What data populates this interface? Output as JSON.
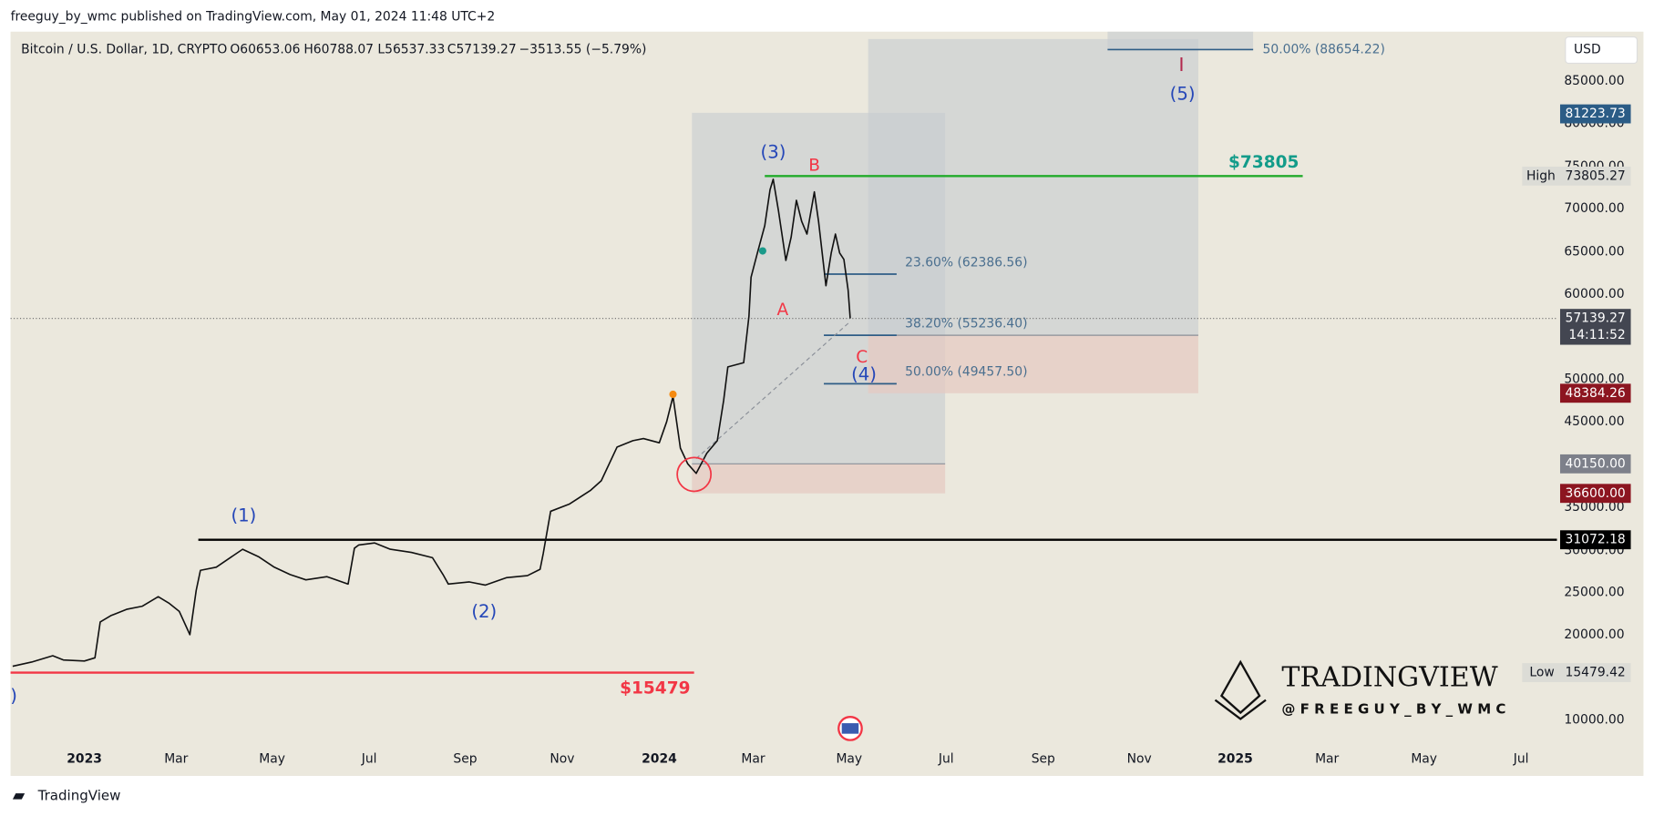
{
  "header": {
    "publisher": "freeguy_by_wmc published on TradingView.com, May 01, 2024 11:48 UTC+2"
  },
  "legend": {
    "symbol": "Bitcoin / U.S. Dollar, 1D, CRYPTO",
    "open": "O60653.06",
    "high": "H60788.07",
    "low": "L56537.33",
    "close": "C57139.27",
    "change": "−3513.55 (−5.79%)"
  },
  "currency": "USD",
  "price_axis": [
    "85000.00",
    "80000.00",
    "75000.00",
    "70000.00",
    "65000.00",
    "60000.00",
    "50000.00",
    "45000.00",
    "35000.00",
    "30000.00",
    "25000.00",
    "20000.00",
    "10000.00"
  ],
  "time_axis": [
    "2023",
    "Mar",
    "May",
    "Jul",
    "Sep",
    "Nov",
    "2024",
    "Mar",
    "May",
    "Jul",
    "Sep",
    "Nov",
    "2025",
    "Mar",
    "May",
    "Jul"
  ],
  "price_tags": {
    "t81223": "81223.73",
    "high_label": "High",
    "high": "73805.27",
    "last": "57139.27",
    "countdown": "14:11:52",
    "t48384": "48384.26",
    "t40150": "40150.00",
    "t36600": "36600.00",
    "t31072": "31072.18",
    "low_label": "Low",
    "low": "15479.42"
  },
  "waves": {
    "w1": "(1)",
    "w2": "(2)",
    "w3": "(3)",
    "w4": "(4)",
    "w5": "(5)",
    "wI": "I",
    "wA": "A",
    "wB": "B",
    "wC": "C",
    "edge": ")"
  },
  "levels": {
    "high": "$73805",
    "low": "$15479"
  },
  "fib": {
    "f236": "23.60% (62386.56)",
    "f382": "38.20% (55236.40)",
    "f500": "50.00% (49457.50)",
    "f500top": "50.00% (88654.22)"
  },
  "watermark": {
    "brand": "TRADINGVIEW",
    "author": "@ F R E E G U Y _ B Y _ W M C"
  },
  "footer": {
    "brand": "TradingView"
  }
}
